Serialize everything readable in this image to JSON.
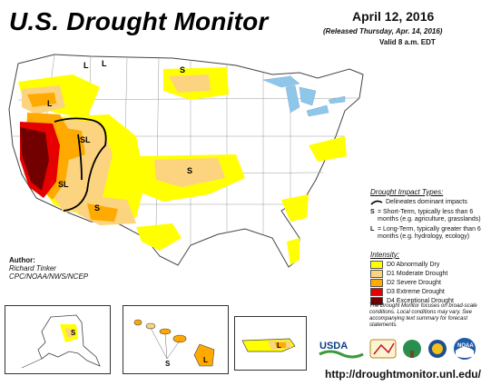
{
  "header": {
    "title": "U.S. Drought Monitor",
    "date": "April 12, 2016",
    "released": "(Released Thursday, Apr. 14, 2016)",
    "valid": "Valid 8 a.m. EDT"
  },
  "impact_types": {
    "heading": "Drought Impact Types:",
    "delineates": "Delineates dominant impacts",
    "short_term_key": "S",
    "short_term_text": "= Short-Term, typically less than 6 months (e.g. agriculture, grasslands)",
    "long_term_key": "L",
    "long_term_text": "= Long-Term, typically greater than 6 months (e.g. hydrology, ecology)"
  },
  "intensity": {
    "heading": "Intensity:",
    "levels": [
      {
        "label": "D0 Abnormally Dry",
        "color": "#ffff00"
      },
      {
        "label": "D1 Moderate Drought",
        "color": "#fcd37f"
      },
      {
        "label": "D2 Severe Drought",
        "color": "#ffaa00"
      },
      {
        "label": "D3 Extreme Drought",
        "color": "#e60000"
      },
      {
        "label": "D4 Exceptional Drought",
        "color": "#730000"
      }
    ]
  },
  "author": {
    "label": "Author:",
    "name": "Richard Tinker",
    "org": "CPC/NOAA/NWS/NCEP"
  },
  "note": "The Drought Monitor focuses on broad-scale conditions. Local conditions may vary. See accompanying text summary for forecast statements.",
  "map_labels": {
    "nw_L1": "L",
    "nw_L2": "L",
    "mt_S": "S",
    "or_L": "L",
    "ca_SL": "SL",
    "nv_SL": "SL",
    "sw_S": "S",
    "ks_S": "S",
    "ak_S": "S",
    "hi_S": "S",
    "hi_L": "L",
    "pr_L": "L"
  },
  "logos": {
    "usda": "USDA",
    "noaa": "NOAA"
  },
  "url": "http://droughtmonitor.unl.edu/"
}
